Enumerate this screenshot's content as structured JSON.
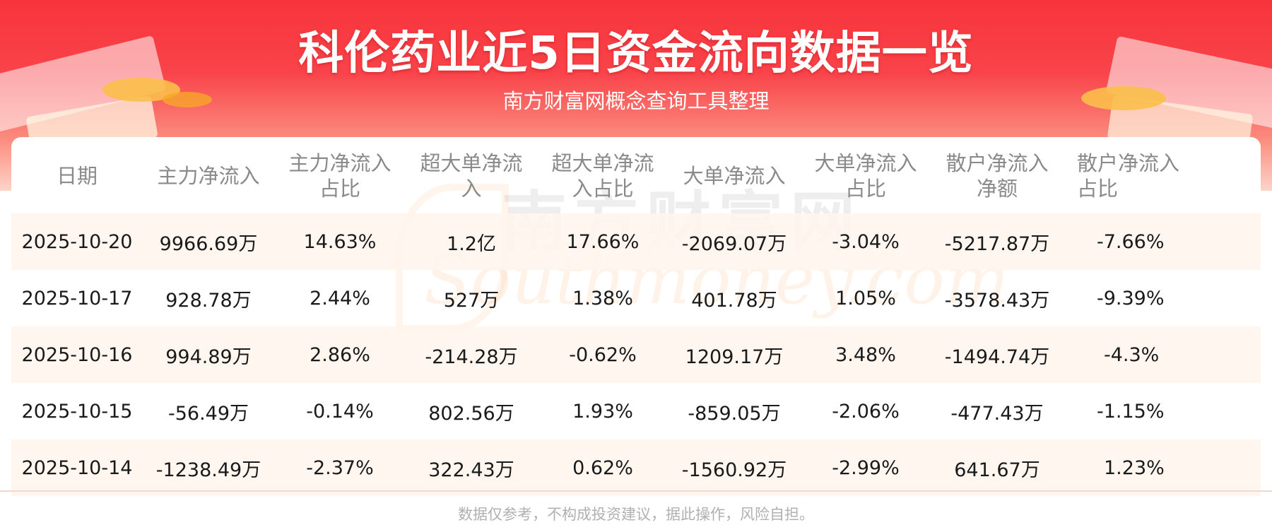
{
  "header": {
    "title": "科伦药业近5日资金流向数据一览",
    "subtitle": "南方财富网概念查询工具整理"
  },
  "watermark": {
    "cn": "南方财富网",
    "en": "Southmoney.com"
  },
  "table": {
    "headers": [
      [
        "日期"
      ],
      [
        "主力净流入"
      ],
      [
        "主力净流入",
        "占比"
      ],
      [
        "超大单净流",
        "入"
      ],
      [
        "超大单净流",
        "入占比"
      ],
      [
        "大单净流入"
      ],
      [
        "大单净流入",
        "占比"
      ],
      [
        "散户净流入",
        "净额"
      ],
      [
        "散户净流入",
        "占比"
      ]
    ],
    "rows": [
      [
        "2025-10-20",
        "9966.69万",
        "14.63%",
        "1.2亿",
        "17.66%",
        "-2069.07万",
        "-3.04%",
        "-5217.87万",
        "-7.66%"
      ],
      [
        "2025-10-17",
        "928.78万",
        "2.44%",
        "527万",
        "1.38%",
        "401.78万",
        "1.05%",
        "-3578.43万",
        "-9.39%"
      ],
      [
        "2025-10-16",
        "994.89万",
        "2.86%",
        "-214.28万",
        "-0.62%",
        "1209.17万",
        "3.48%",
        "-1494.74万",
        "-4.3%"
      ],
      [
        "2025-10-15",
        "-56.49万",
        "-0.14%",
        "802.56万",
        "1.93%",
        "-859.05万",
        "-2.06%",
        "-477.43万",
        "-1.15%"
      ],
      [
        "2025-10-14",
        "-1238.49万",
        "-2.37%",
        "322.43万",
        "0.62%",
        "-1560.92万",
        "-2.99%",
        "641.67万",
        "1.23%"
      ]
    ]
  },
  "footer": {
    "disclaimer": "数据仅参考，不构成投资建议，据此操作，风险自担。"
  }
}
